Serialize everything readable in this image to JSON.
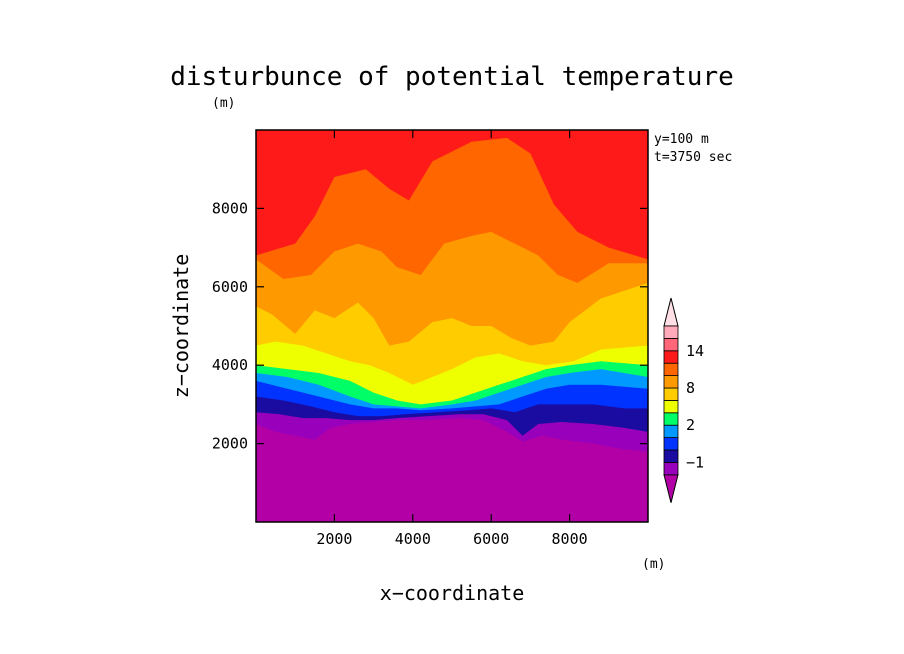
{
  "chart_data": {
    "type": "contour",
    "title": "disturbunce of potential temperature",
    "xlabel": "x−coordinate",
    "ylabel": "z−coordinate",
    "x_unit": "(m)",
    "y_unit": "(m)",
    "colorbar_unit": "(m)",
    "annotations": [
      "y=100 m",
      "t=3750 sec"
    ],
    "xlim": [
      0,
      10000
    ],
    "ylim": [
      0,
      10000
    ],
    "xticks": [
      2000,
      4000,
      6000,
      8000
    ],
    "yticks": [
      2000,
      4000,
      6000,
      8000
    ],
    "colorbar": {
      "levels": [
        -2,
        -1,
        0,
        1,
        2,
        4,
        6,
        8,
        10,
        12,
        14,
        16
      ],
      "labeled_levels": [
        -1,
        2,
        8,
        14
      ],
      "colors": [
        "#9900bb",
        "#1a0ca0",
        "#0033ff",
        "#0099ff",
        "#00ff66",
        "#eeff00",
        "#ffcc00",
        "#ff9900",
        "#ff6600",
        "#ff1a1a",
        "#ff6677",
        "#ffaabb"
      ],
      "under_color": "#b300a6",
      "over_color": "#ffe0e6"
    },
    "bands": [
      {
        "fill": "#ff1a1a",
        "boundary": [
          [
            0,
            10000
          ],
          [
            10000,
            10000
          ],
          [
            10000,
            0
          ]
        ]
      },
      {
        "fill": "#ff6600",
        "boundary": [
          [
            0,
            6800
          ],
          [
            1000,
            7100
          ],
          [
            1500,
            7800
          ],
          [
            2000,
            8800
          ],
          [
            2800,
            9000
          ],
          [
            3400,
            8500
          ],
          [
            3900,
            8200
          ],
          [
            4500,
            9200
          ],
          [
            5500,
            9700
          ],
          [
            6400,
            9800
          ],
          [
            7000,
            9400
          ],
          [
            7600,
            8100
          ],
          [
            8200,
            7400
          ],
          [
            9000,
            7000
          ],
          [
            10000,
            6700
          ]
        ]
      },
      {
        "fill": "#ff9900",
        "boundary": [
          [
            0,
            6700
          ],
          [
            700,
            6200
          ],
          [
            1400,
            6300
          ],
          [
            2000,
            6900
          ],
          [
            2600,
            7100
          ],
          [
            3200,
            6900
          ],
          [
            3600,
            6500
          ],
          [
            4200,
            6300
          ],
          [
            4800,
            7100
          ],
          [
            5500,
            7300
          ],
          [
            6000,
            7400
          ],
          [
            6600,
            7100
          ],
          [
            7200,
            6800
          ],
          [
            7700,
            6300
          ],
          [
            8200,
            6100
          ],
          [
            9000,
            6600
          ],
          [
            10000,
            6600
          ]
        ]
      },
      {
        "fill": "#ffcc00",
        "boundary": [
          [
            0,
            5500
          ],
          [
            400,
            5300
          ],
          [
            1000,
            4800
          ],
          [
            1500,
            5400
          ],
          [
            2000,
            5200
          ],
          [
            2600,
            5600
          ],
          [
            3000,
            5200
          ],
          [
            3400,
            4500
          ],
          [
            3900,
            4600
          ],
          [
            4500,
            5100
          ],
          [
            5000,
            5200
          ],
          [
            5500,
            5000
          ],
          [
            6000,
            5000
          ],
          [
            6500,
            4700
          ],
          [
            7000,
            4500
          ],
          [
            7600,
            4600
          ],
          [
            8000,
            5100
          ],
          [
            8800,
            5700
          ],
          [
            10000,
            6100
          ]
        ]
      },
      {
        "fill": "#eeff00",
        "boundary": [
          [
            0,
            4500
          ],
          [
            500,
            4600
          ],
          [
            1200,
            4500
          ],
          [
            1800,
            4300
          ],
          [
            2400,
            4100
          ],
          [
            2900,
            4000
          ],
          [
            3400,
            3800
          ],
          [
            4000,
            3500
          ],
          [
            4500,
            3700
          ],
          [
            5000,
            3900
          ],
          [
            5600,
            4200
          ],
          [
            6200,
            4300
          ],
          [
            6800,
            4100
          ],
          [
            7400,
            4000
          ],
          [
            8100,
            4100
          ],
          [
            8800,
            4400
          ],
          [
            10000,
            4500
          ]
        ]
      },
      {
        "fill": "#00ff66",
        "boundary": [
          [
            0,
            4000
          ],
          [
            800,
            3900
          ],
          [
            1600,
            3800
          ],
          [
            2400,
            3600
          ],
          [
            3000,
            3300
          ],
          [
            3600,
            3100
          ],
          [
            4200,
            3000
          ],
          [
            5000,
            3100
          ],
          [
            5600,
            3300
          ],
          [
            6200,
            3500
          ],
          [
            6800,
            3700
          ],
          [
            7400,
            3900
          ],
          [
            8000,
            4000
          ],
          [
            8800,
            4100
          ],
          [
            10000,
            4000
          ]
        ]
      },
      {
        "fill": "#0099ff",
        "boundary": [
          [
            0,
            3800
          ],
          [
            800,
            3700
          ],
          [
            1600,
            3500
          ],
          [
            2400,
            3200
          ],
          [
            3000,
            3000
          ],
          [
            3600,
            2950
          ],
          [
            4200,
            2900
          ],
          [
            5000,
            3000
          ],
          [
            5600,
            3100
          ],
          [
            6200,
            3300
          ],
          [
            6800,
            3500
          ],
          [
            7400,
            3700
          ],
          [
            8000,
            3800
          ],
          [
            8800,
            3900
          ],
          [
            10000,
            3700
          ]
        ]
      },
      {
        "fill": "#0033ff",
        "boundary": [
          [
            0,
            3600
          ],
          [
            800,
            3400
          ],
          [
            1600,
            3200
          ],
          [
            2400,
            3000
          ],
          [
            3000,
            2900
          ],
          [
            3600,
            2900
          ],
          [
            4200,
            2850
          ],
          [
            5000,
            2900
          ],
          [
            5600,
            2950
          ],
          [
            6200,
            3000
          ],
          [
            6800,
            3200
          ],
          [
            7400,
            3400
          ],
          [
            8000,
            3500
          ],
          [
            8800,
            3500
          ],
          [
            10000,
            3400
          ]
        ]
      },
      {
        "fill": "#1a0ca0",
        "boundary": [
          [
            0,
            3200
          ],
          [
            700,
            3100
          ],
          [
            1400,
            2950
          ],
          [
            2000,
            2800
          ],
          [
            2600,
            2700
          ],
          [
            3200,
            2700
          ],
          [
            3800,
            2750
          ],
          [
            4600,
            2800
          ],
          [
            5400,
            2850
          ],
          [
            6000,
            2900
          ],
          [
            6600,
            2800
          ],
          [
            7200,
            3000
          ],
          [
            7800,
            3000
          ],
          [
            8600,
            3000
          ],
          [
            9400,
            2900
          ],
          [
            10000,
            2900
          ]
        ]
      },
      {
        "fill": "#9900bb",
        "boundary": [
          [
            0,
            2800
          ],
          [
            600,
            2750
          ],
          [
            1200,
            2650
          ],
          [
            1800,
            2650
          ],
          [
            2400,
            2600
          ],
          [
            3000,
            2600
          ],
          [
            3600,
            2650
          ],
          [
            4400,
            2700
          ],
          [
            5200,
            2750
          ],
          [
            5800,
            2750
          ],
          [
            6400,
            2600
          ],
          [
            6800,
            2200
          ],
          [
            7200,
            2500
          ],
          [
            7800,
            2550
          ],
          [
            8600,
            2500
          ],
          [
            9400,
            2400
          ],
          [
            10000,
            2300
          ]
        ]
      },
      {
        "fill": "#b300a6",
        "boundary": [
          [
            0,
            2500
          ],
          [
            500,
            2300
          ],
          [
            1000,
            2200
          ],
          [
            1500,
            2100
          ],
          [
            1900,
            2400
          ],
          [
            2400,
            2500
          ],
          [
            3000,
            2550
          ],
          [
            3600,
            2600
          ],
          [
            4400,
            2600
          ],
          [
            5200,
            2650
          ],
          [
            5800,
            2600
          ],
          [
            6400,
            2300
          ],
          [
            6800,
            2050
          ],
          [
            7300,
            2200
          ],
          [
            7800,
            2100
          ],
          [
            8600,
            2000
          ],
          [
            9400,
            1850
          ],
          [
            10000,
            1800
          ]
        ]
      }
    ]
  }
}
